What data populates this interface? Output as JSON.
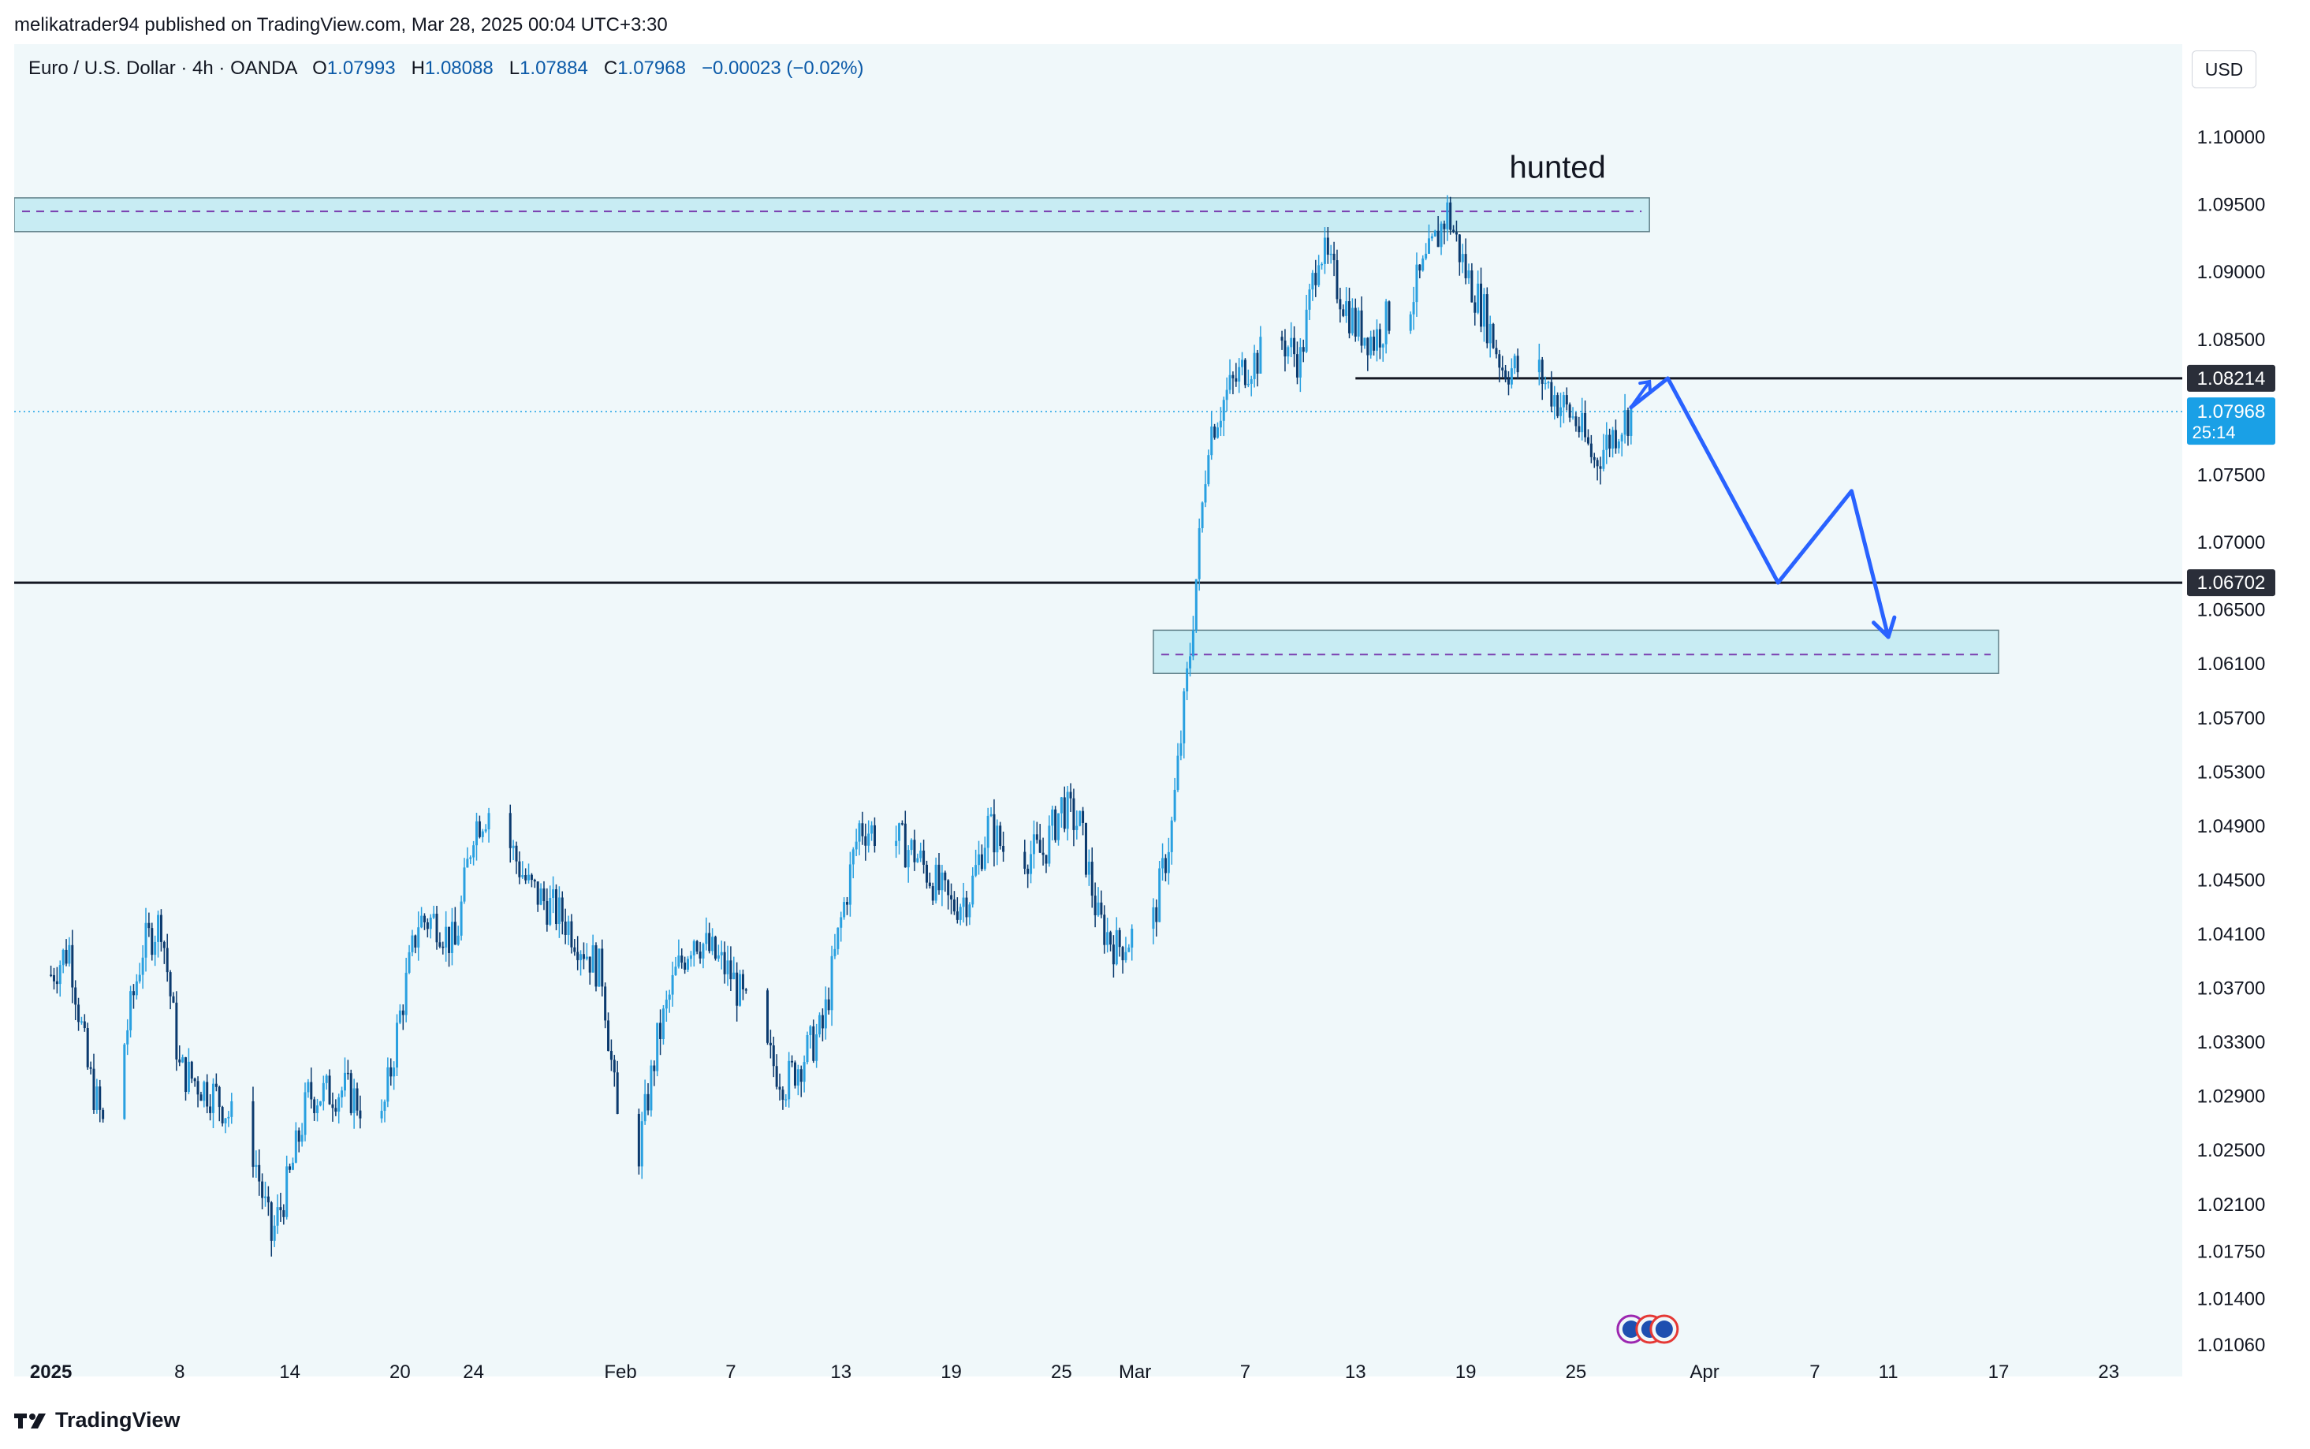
{
  "header": {
    "published": "melikatrader94 published on TradingView.com, Mar 28, 2025 00:04 UTC+3:30"
  },
  "legend": {
    "symbol": "Euro / U.S. Dollar · 4h · OANDA",
    "o_label": "O",
    "o_value": "1.07993",
    "h_label": "H",
    "h_value": "1.08088",
    "l_label": "L",
    "l_value": "1.07884",
    "c_label": "C",
    "c_value": "1.07968",
    "change": "−0.00023 (−0.02%)"
  },
  "currency_button": "USD",
  "footer": {
    "brand": "TradingView"
  },
  "colors": {
    "background": "#f0f8fa",
    "candle_up": "#29a0e0",
    "candle_down": "#0b3a6e",
    "zone_fill": "#c8ecf3",
    "projection": "#2962ff",
    "level_line": "#131722",
    "current_price_tag": "#1aa0e6"
  },
  "chart_data": {
    "type": "candlestick",
    "symbol": "EURUSD",
    "timeframe": "4h",
    "currency": "USD",
    "ylim": [
      1.0106,
      1.1018
    ],
    "x_range": [
      "2024-12-30",
      "2025-04-27"
    ],
    "y_ticks": [
      "1.10000",
      "1.09500",
      "1.09000",
      "1.08500",
      "1.07500",
      "1.07000",
      "1.06500",
      "1.06100",
      "1.05700",
      "1.05300",
      "1.04900",
      "1.04500",
      "1.04100",
      "1.03700",
      "1.03300",
      "1.02900",
      "1.02500",
      "1.02100",
      "1.01750",
      "1.01400",
      "1.01060"
    ],
    "x_ticks": [
      {
        "label": "2025",
        "date": "2025-01-01"
      },
      {
        "label": "8",
        "date": "2025-01-08"
      },
      {
        "label": "14",
        "date": "2025-01-14"
      },
      {
        "label": "20",
        "date": "2025-01-20"
      },
      {
        "label": "24",
        "date": "2025-01-24"
      },
      {
        "label": "Feb",
        "date": "2025-02-01"
      },
      {
        "label": "7",
        "date": "2025-02-07"
      },
      {
        "label": "13",
        "date": "2025-02-13"
      },
      {
        "label": "19",
        "date": "2025-02-19"
      },
      {
        "label": "25",
        "date": "2025-02-25"
      },
      {
        "label": "Mar",
        "date": "2025-03-01"
      },
      {
        "label": "7",
        "date": "2025-03-07"
      },
      {
        "label": "13",
        "date": "2025-03-13"
      },
      {
        "label": "19",
        "date": "2025-03-19"
      },
      {
        "label": "25",
        "date": "2025-03-25"
      },
      {
        "label": "Apr",
        "date": "2025-04-01"
      },
      {
        "label": "7",
        "date": "2025-04-07"
      },
      {
        "label": "11",
        "date": "2025-04-11"
      },
      {
        "label": "17",
        "date": "2025-04-17"
      },
      {
        "label": "23",
        "date": "2025-04-23"
      }
    ],
    "price_path": [
      {
        "date": "2025-01-01",
        "close": 1.038
      },
      {
        "date": "2025-01-02",
        "close": 1.04
      },
      {
        "date": "2025-01-03",
        "close": 1.031
      },
      {
        "date": "2025-01-04",
        "close": 1.026
      },
      {
        "date": "2025-01-06",
        "close": 1.04
      },
      {
        "date": "2025-01-07",
        "close": 1.042
      },
      {
        "date": "2025-01-08",
        "close": 1.031
      },
      {
        "date": "2025-01-10",
        "close": 1.029
      },
      {
        "date": "2025-01-12",
        "close": 1.025
      },
      {
        "date": "2025-01-13",
        "close": 1.0185
      },
      {
        "date": "2025-01-14",
        "close": 1.023
      },
      {
        "date": "2025-01-15",
        "close": 1.029
      },
      {
        "date": "2025-01-17",
        "close": 1.0295
      },
      {
        "date": "2025-01-19",
        "close": 1.027
      },
      {
        "date": "2025-01-20",
        "close": 1.035
      },
      {
        "date": "2025-01-21",
        "close": 1.042
      },
      {
        "date": "2025-01-22",
        "close": 1.042
      },
      {
        "date": "2025-01-23",
        "close": 1.04
      },
      {
        "date": "2025-01-24",
        "close": 1.049
      },
      {
        "date": "2025-01-25",
        "close": 1.0505
      },
      {
        "date": "2025-01-27",
        "close": 1.0445
      },
      {
        "date": "2025-01-29",
        "close": 1.042
      },
      {
        "date": "2025-01-31",
        "close": 1.038
      },
      {
        "date": "2025-02-01",
        "close": 1.025
      },
      {
        "date": "2025-02-02",
        "close": 1.025
      },
      {
        "date": "2025-02-03",
        "close": 1.033
      },
      {
        "date": "2025-02-04",
        "close": 1.038
      },
      {
        "date": "2025-02-05",
        "close": 1.041
      },
      {
        "date": "2025-02-06",
        "close": 1.0395
      },
      {
        "date": "2025-02-07",
        "close": 1.038
      },
      {
        "date": "2025-02-09",
        "close": 1.032
      },
      {
        "date": "2025-02-10",
        "close": 1.03
      },
      {
        "date": "2025-02-12",
        "close": 1.034
      },
      {
        "date": "2025-02-13",
        "close": 1.042
      },
      {
        "date": "2025-02-14",
        "close": 1.049
      },
      {
        "date": "2025-02-16",
        "close": 1.048
      },
      {
        "date": "2025-02-17",
        "close": 1.047
      },
      {
        "date": "2025-02-18",
        "close": 1.045
      },
      {
        "date": "2025-02-19",
        "close": 1.043
      },
      {
        "date": "2025-02-20",
        "close": 1.044
      },
      {
        "date": "2025-02-21",
        "close": 1.049
      },
      {
        "date": "2025-02-22",
        "close": 1.047
      },
      {
        "date": "2025-02-24",
        "close": 1.047
      },
      {
        "date": "2025-02-25",
        "close": 1.0505
      },
      {
        "date": "2025-02-26",
        "close": 1.049
      },
      {
        "date": "2025-02-27",
        "close": 1.042
      },
      {
        "date": "2025-02-28",
        "close": 1.04
      },
      {
        "date": "2025-03-01",
        "close": 1.041
      },
      {
        "date": "2025-03-02",
        "close": 1.042
      },
      {
        "date": "2025-03-03",
        "close": 1.049
      },
      {
        "date": "2025-03-04",
        "close": 1.062
      },
      {
        "date": "2025-03-05",
        "close": 1.078
      },
      {
        "date": "2025-03-06",
        "close": 1.081
      },
      {
        "date": "2025-03-07",
        "close": 1.083
      },
      {
        "date": "2025-03-08",
        "close": 1.084
      },
      {
        "date": "2025-03-09",
        "close": 1.085
      },
      {
        "date": "2025-03-10",
        "close": 1.0835
      },
      {
        "date": "2025-03-11",
        "close": 1.092
      },
      {
        "date": "2025-03-12",
        "close": 1.089
      },
      {
        "date": "2025-03-13",
        "close": 1.086
      },
      {
        "date": "2025-03-14",
        "close": 1.085
      },
      {
        "date": "2025-03-15",
        "close": 1.087
      },
      {
        "date": "2025-03-16",
        "close": 1.088
      },
      {
        "date": "2025-03-17",
        "close": 1.091
      },
      {
        "date": "2025-03-18",
        "close": 1.0945
      },
      {
        "date": "2025-03-19",
        "close": 1.09
      },
      {
        "date": "2025-03-20",
        "close": 1.087
      },
      {
        "date": "2025-03-21",
        "close": 1.083
      },
      {
        "date": "2025-03-23",
        "close": 1.0825
      },
      {
        "date": "2025-03-24",
        "close": 1.0805
      },
      {
        "date": "2025-03-25",
        "close": 1.079
      },
      {
        "date": "2025-03-26",
        "close": 1.076
      },
      {
        "date": "2025-03-27",
        "close": 1.078
      },
      {
        "date": "2025-03-28",
        "close": 1.07968
      }
    ],
    "levels": [
      {
        "label": "1.08214",
        "price": 1.08214,
        "start": "2025-03-13"
      },
      {
        "label": "1.06702",
        "price": 1.06702,
        "start": "2024-12-30"
      }
    ],
    "current_price": {
      "label": "1.07968",
      "price": 1.07968,
      "countdown": "25:14"
    },
    "zones": [
      {
        "top": 1.0955,
        "bottom": 1.093,
        "mid": 1.0945,
        "start": "2024-12-30",
        "end": "2025-03-29"
      },
      {
        "top": 1.0635,
        "bottom": 1.0603,
        "mid": 1.0617,
        "start": "2025-03-02",
        "end": "2025-04-17"
      }
    ],
    "annotation": {
      "text": "hunted",
      "date": "2025-03-24",
      "price": 1.097
    },
    "projection": [
      {
        "date": "2025-03-28",
        "price": 1.08
      },
      {
        "date": "2025-03-30",
        "price": 1.08214
      },
      {
        "date": "2025-04-05",
        "price": 1.06702
      },
      {
        "date": "2025-04-09",
        "price": 1.0738
      },
      {
        "date": "2025-04-11",
        "price": 1.063
      }
    ],
    "projection_tail": [
      {
        "date": "2025-03-28",
        "price": 1.08
      },
      {
        "date": "2025-03-29",
        "price": 1.0819
      }
    ],
    "events_marker_date": "2025-03-28"
  }
}
